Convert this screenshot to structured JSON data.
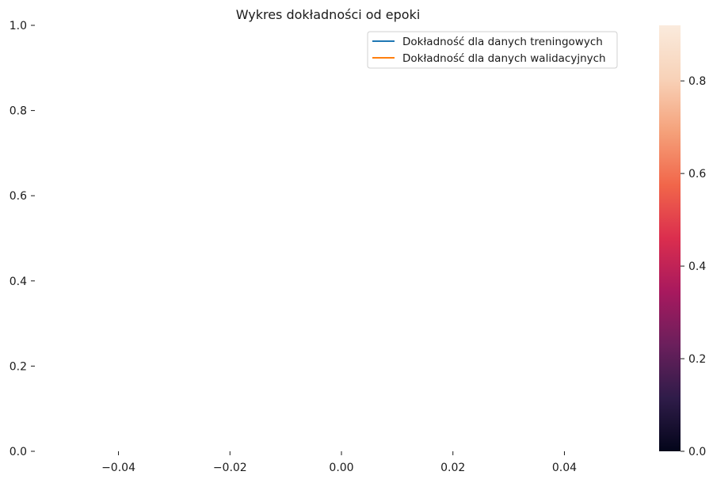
{
  "chart_data": {
    "type": "line",
    "title": "Wykres dokładności od epoki",
    "xlabel": "",
    "ylabel": "",
    "xlim": [
      -0.055,
      0.055
    ],
    "ylim": [
      0,
      1
    ],
    "x_ticks": [
      "−0.04",
      "−0.02",
      "0.00",
      "0.02",
      "0.04"
    ],
    "x_tick_values": [
      -0.04,
      -0.02,
      0.0,
      0.02,
      0.04
    ],
    "y_ticks": [
      "0.0",
      "0.2",
      "0.4",
      "0.6",
      "0.8",
      "1.0"
    ],
    "y_tick_values": [
      0.0,
      0.2,
      0.4,
      0.6,
      0.8,
      1.0
    ],
    "grid": false,
    "legend_position": "top-right",
    "series": [
      {
        "name": "Dokładność dla danych treningowych",
        "color": "#1f77b4",
        "x": [],
        "y": []
      },
      {
        "name": "Dokładność dla danych walidacyjnych",
        "color": "#ff7f0e",
        "x": [],
        "y": []
      }
    ],
    "colorbar": {
      "range": [
        0,
        0.92
      ],
      "ticks": [
        "0.0",
        "0.2",
        "0.4",
        "0.6",
        "0.8"
      ],
      "tick_values": [
        0.0,
        0.2,
        0.4,
        0.6,
        0.8
      ],
      "colormap": "rocket",
      "colormap_stops": [
        "#03051a",
        "#2f1c49",
        "#6b1f5c",
        "#a8195e",
        "#db2e4e",
        "#f1664a",
        "#f5a17a",
        "#f8d2b8",
        "#faebdd"
      ]
    }
  }
}
